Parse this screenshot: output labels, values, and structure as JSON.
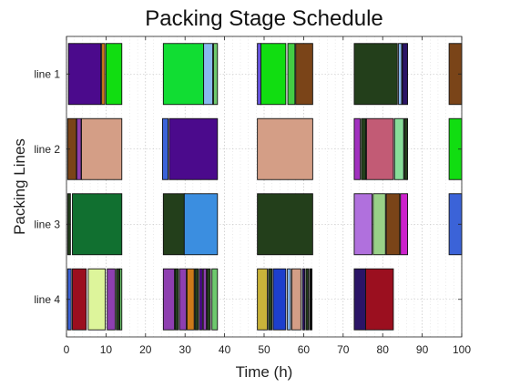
{
  "chart_data": {
    "type": "gantt",
    "title": "Packing Stage Schedule",
    "xlabel": "Time (h)",
    "ylabel": "Packing Lines",
    "xlim": [
      0,
      100
    ],
    "xticks": [
      0,
      10,
      20,
      30,
      40,
      50,
      60,
      70,
      80,
      90,
      100
    ],
    "grid": true,
    "lines": [
      {
        "name": "line 1",
        "tasks": [
          {
            "start": 0.5,
            "end": 8.7,
            "color": "#4b0a8c"
          },
          {
            "start": 8.9,
            "end": 9.7,
            "color": "#cc7a1a"
          },
          {
            "start": 10.0,
            "end": 14.0,
            "color": "#11dd11"
          },
          {
            "start": 24.5,
            "end": 34.7,
            "color": "#11dd33"
          },
          {
            "start": 34.7,
            "end": 37.0,
            "color": "#88b8ee"
          },
          {
            "start": 37.2,
            "end": 38.2,
            "color": "#6ec96e"
          },
          {
            "start": 48.3,
            "end": 49.2,
            "color": "#6655dd"
          },
          {
            "start": 49.2,
            "end": 55.5,
            "color": "#11dd11"
          },
          {
            "start": 56.0,
            "end": 57.8,
            "color": "#44cc44"
          },
          {
            "start": 58.0,
            "end": 62.3,
            "color": "#7a4418"
          },
          {
            "start": 72.8,
            "end": 83.7,
            "color": "#233f1b"
          },
          {
            "start": 84.0,
            "end": 84.8,
            "color": "#88b8ee"
          },
          {
            "start": 85.0,
            "end": 86.3,
            "color": "#2b1466"
          },
          {
            "start": 96.8,
            "end": 100.0,
            "color": "#7a4418"
          }
        ]
      },
      {
        "name": "line 2",
        "tasks": [
          {
            "start": 0.3,
            "end": 2.5,
            "color": "#7a4418"
          },
          {
            "start": 2.6,
            "end": 3.7,
            "color": "#8e3fb0"
          },
          {
            "start": 3.8,
            "end": 14.0,
            "color": "#d49e86"
          },
          {
            "start": 24.3,
            "end": 25.7,
            "color": "#3b63d8"
          },
          {
            "start": 26.0,
            "end": 38.2,
            "color": "#4b0a8c"
          },
          {
            "start": 48.3,
            "end": 62.3,
            "color": "#d49e86"
          },
          {
            "start": 72.8,
            "end": 74.3,
            "color": "#a12fbf"
          },
          {
            "start": 74.6,
            "end": 75.7,
            "color": "#233f1b"
          },
          {
            "start": 75.9,
            "end": 82.7,
            "color": "#c25b75"
          },
          {
            "start": 83.0,
            "end": 85.3,
            "color": "#88dd99"
          },
          {
            "start": 85.5,
            "end": 86.3,
            "color": "#233f1b"
          },
          {
            "start": 96.8,
            "end": 100.0,
            "color": "#11dd11"
          }
        ]
      },
      {
        "name": "line 3",
        "tasks": [
          {
            "start": 0.3,
            "end": 1.0,
            "color": "#233f1b"
          },
          {
            "start": 1.5,
            "end": 14.0,
            "color": "#117030"
          },
          {
            "start": 24.5,
            "end": 29.8,
            "color": "#233f1b"
          },
          {
            "start": 29.8,
            "end": 38.2,
            "color": "#3b8ee0"
          },
          {
            "start": 48.3,
            "end": 62.3,
            "color": "#233f1b"
          },
          {
            "start": 72.8,
            "end": 77.3,
            "color": "#b070dd"
          },
          {
            "start": 77.6,
            "end": 80.7,
            "color": "#99d088"
          },
          {
            "start": 80.9,
            "end": 84.3,
            "color": "#7a4418"
          },
          {
            "start": 84.5,
            "end": 86.3,
            "color": "#cc22cc"
          },
          {
            "start": 96.8,
            "end": 100.0,
            "color": "#3b63d8"
          }
        ]
      },
      {
        "name": "line 4",
        "tasks": [
          {
            "start": 0.3,
            "end": 1.2,
            "color": "#3b63d8"
          },
          {
            "start": 1.5,
            "end": 5.0,
            "color": "#9b0f1f"
          },
          {
            "start": 5.5,
            "end": 9.8,
            "color": "#ddf59b"
          },
          {
            "start": 10.3,
            "end": 12.3,
            "color": "#8e3fb0"
          },
          {
            "start": 12.6,
            "end": 13.4,
            "color": "#233f1b"
          },
          {
            "start": 13.5,
            "end": 14.0,
            "color": "#6ec96e"
          },
          {
            "start": 24.5,
            "end": 27.3,
            "color": "#8e3fb0"
          },
          {
            "start": 27.5,
            "end": 28.3,
            "color": "#233f1b"
          },
          {
            "start": 28.6,
            "end": 30.3,
            "color": "#8e3fb0"
          },
          {
            "start": 30.5,
            "end": 32.3,
            "color": "#cc7a1a"
          },
          {
            "start": 32.5,
            "end": 33.3,
            "color": "#233f1b"
          },
          {
            "start": 33.6,
            "end": 34.4,
            "color": "#4b0a8c"
          },
          {
            "start": 34.6,
            "end": 35.4,
            "color": "#8e3fb0"
          },
          {
            "start": 35.6,
            "end": 36.4,
            "color": "#233f1b"
          },
          {
            "start": 36.8,
            "end": 38.2,
            "color": "#6ec96e"
          },
          {
            "start": 48.3,
            "end": 50.8,
            "color": "#c9b33a"
          },
          {
            "start": 51.1,
            "end": 52.0,
            "color": "#233f1b"
          },
          {
            "start": 52.3,
            "end": 55.5,
            "color": "#1d3fcc"
          },
          {
            "start": 55.9,
            "end": 56.7,
            "color": "#88b8ee"
          },
          {
            "start": 57.0,
            "end": 59.3,
            "color": "#d49e86"
          },
          {
            "start": 59.7,
            "end": 60.3,
            "color": "#2b1466"
          },
          {
            "start": 60.6,
            "end": 61.2,
            "color": "#233f1b"
          },
          {
            "start": 61.5,
            "end": 62.1,
            "color": "#111111"
          },
          {
            "start": 72.8,
            "end": 75.7,
            "color": "#2b1466"
          },
          {
            "start": 75.7,
            "end": 82.7,
            "color": "#9b0f1f"
          }
        ]
      }
    ]
  }
}
